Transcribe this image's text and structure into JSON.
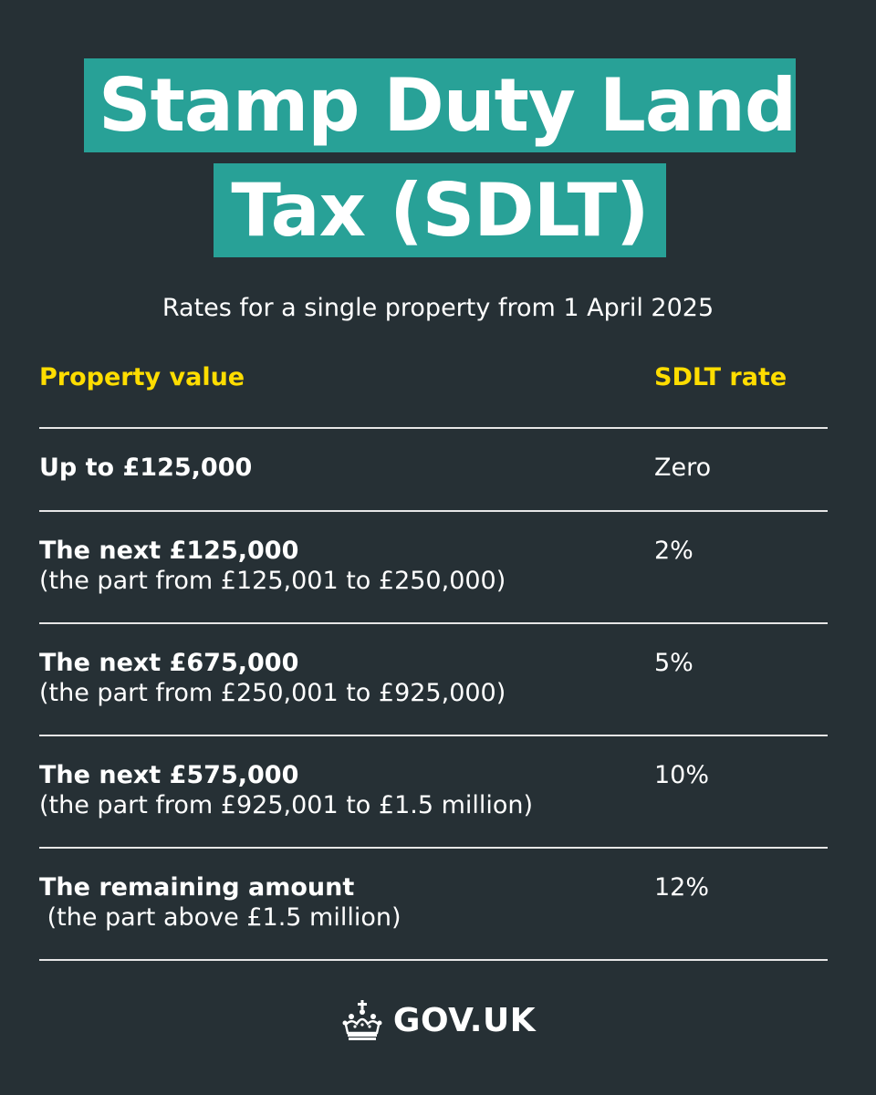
{
  "title": {
    "line1": "Stamp Duty Land",
    "line2": "Tax (SDLT)"
  },
  "subtitle": "Rates for a single property from 1 April 2025",
  "table": {
    "headers": {
      "property_value": "Property value",
      "rate": "SDLT rate"
    },
    "rows": [
      {
        "main": "Up to £125,000",
        "sub": "",
        "rate": "Zero"
      },
      {
        "main": "The next £125,000",
        "sub": "(the part from £125,001 to £250,000)",
        "rate": "2%"
      },
      {
        "main": "The next £675,000",
        "sub": "(the part from £250,001 to £925,000)",
        "rate": "5%"
      },
      {
        "main": "The next £575,000",
        "sub": "(the part from £925,001 to £1.5 million)",
        "rate": "10%"
      },
      {
        "main": "The remaining amount",
        "sub": " (the part above £1.5 million)",
        "rate": "12%"
      }
    ]
  },
  "footer": {
    "logo_text": "GOV.UK",
    "icon": "crown-icon"
  },
  "colors": {
    "background": "#263035",
    "title_highlight": "#28a197",
    "header_text": "#ffdd00",
    "text": "#ffffff",
    "divider": "#e6e6e6"
  }
}
